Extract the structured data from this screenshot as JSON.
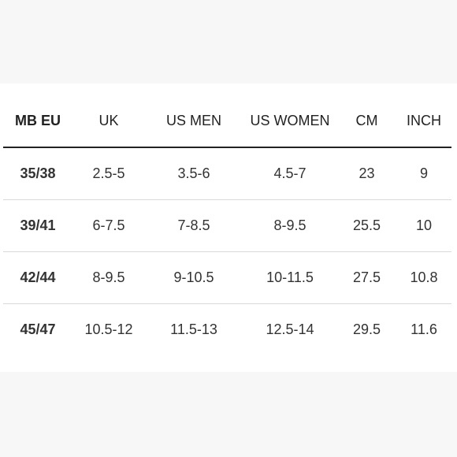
{
  "table": {
    "headers": [
      "MB EU",
      "UK",
      "US MEN",
      "US WOMEN",
      "CM",
      "INCH"
    ],
    "rows": [
      [
        "35/38",
        "2.5-5",
        "3.5-6",
        "4.5-7",
        "23",
        "9"
      ],
      [
        "39/41",
        "6-7.5",
        "7-8.5",
        "8-9.5",
        "25.5",
        "10"
      ],
      [
        "42/44",
        "8-9.5",
        "9-10.5",
        "10-11.5",
        "27.5",
        "10.8"
      ],
      [
        "45/47",
        "10.5-12",
        "11.5-13",
        "12.5-14",
        "29.5",
        "11.6"
      ]
    ]
  },
  "colors": {
    "background": "#f7f7f7",
    "card": "#ffffff",
    "text": "#222222",
    "divider": "#d9d9d9"
  }
}
